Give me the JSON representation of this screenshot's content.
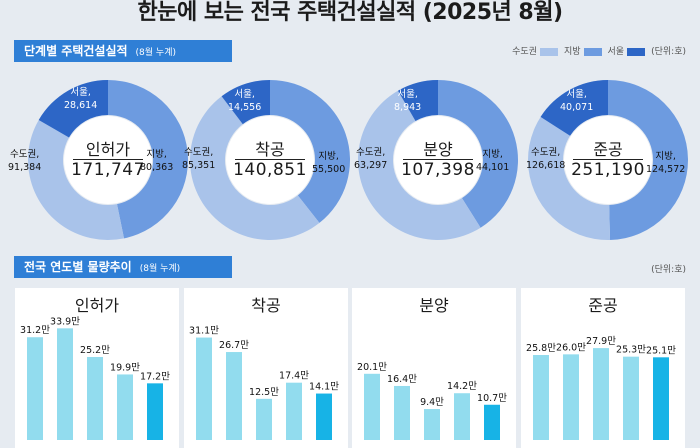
{
  "title": "한눈에 보는 전국 주택건설실적 (2025년 8월)",
  "section1": {
    "label": "단계별 주택건설실적",
    "sub": "(8월 누계)"
  },
  "legend": {
    "items": [
      {
        "label": "수도권",
        "color": "#a9c3ea"
      },
      {
        "label": "지방",
        "color": "#6d9be0"
      },
      {
        "label": "서울",
        "color": "#2d66c6"
      }
    ],
    "unit": "(단위:호)"
  },
  "section2": {
    "label": "전국 연도별 물량추이",
    "sub": "(8월 누계)",
    "unit": "(단위:호)"
  },
  "colors": {
    "capital": "#a9c3ea",
    "local": "#6d9be0",
    "seoul": "#2d66c6",
    "bar": "#92dcee",
    "bar_current": "#17b3e6"
  },
  "chart_data": [
    {
      "type": "pie",
      "title": "인허가",
      "total": "171,747",
      "slices": [
        {
          "name": "수도권",
          "value": 91384,
          "label": "91,384"
        },
        {
          "name": "지방",
          "value": 80363,
          "label": "80,363"
        },
        {
          "name": "서울",
          "value": 28614,
          "label": "28,614"
        }
      ]
    },
    {
      "type": "pie",
      "title": "착공",
      "total": "140,851",
      "slices": [
        {
          "name": "수도권",
          "value": 85351,
          "label": "85,351"
        },
        {
          "name": "지방",
          "value": 55500,
          "label": "55,500"
        },
        {
          "name": "서울",
          "value": 14556,
          "label": "14,556"
        }
      ]
    },
    {
      "type": "pie",
      "title": "분양",
      "total": "107,398",
      "slices": [
        {
          "name": "수도권",
          "value": 63297,
          "label": "63,297"
        },
        {
          "name": "지방",
          "value": 44101,
          "label": "44,101"
        },
        {
          "name": "서울",
          "value": 8943,
          "label": "8,943"
        }
      ]
    },
    {
      "type": "pie",
      "title": "준공",
      "total": "251,190",
      "slices": [
        {
          "name": "수도권",
          "value": 126618,
          "label": "126,618"
        },
        {
          "name": "지방",
          "value": 124572,
          "label": "124,572"
        },
        {
          "name": "서울",
          "value": 40071,
          "label": "40,071"
        }
      ]
    },
    {
      "type": "bar",
      "title": "인허가",
      "values": [
        31.2,
        33.9,
        25.2,
        19.9,
        17.2
      ],
      "labels": [
        "31.2만",
        "33.9만",
        "25.2만",
        "19.9만",
        "17.2만"
      ]
    },
    {
      "type": "bar",
      "title": "착공",
      "values": [
        31.1,
        26.7,
        12.5,
        17.4,
        14.1
      ],
      "labels": [
        "31.1만",
        "26.7만",
        "12.5만",
        "17.4만",
        "14.1만"
      ]
    },
    {
      "type": "bar",
      "title": "분양",
      "values": [
        20.1,
        16.4,
        9.4,
        14.2,
        10.7
      ],
      "labels": [
        "20.1만",
        "16.4만",
        "9.4만",
        "14.2만",
        "10.7만"
      ]
    },
    {
      "type": "bar",
      "title": "준공",
      "values": [
        25.8,
        26.0,
        27.9,
        25.3,
        25.1
      ],
      "labels": [
        "25.8만",
        "26.0만",
        "27.9만",
        "25.3만",
        "25.1만"
      ]
    }
  ]
}
